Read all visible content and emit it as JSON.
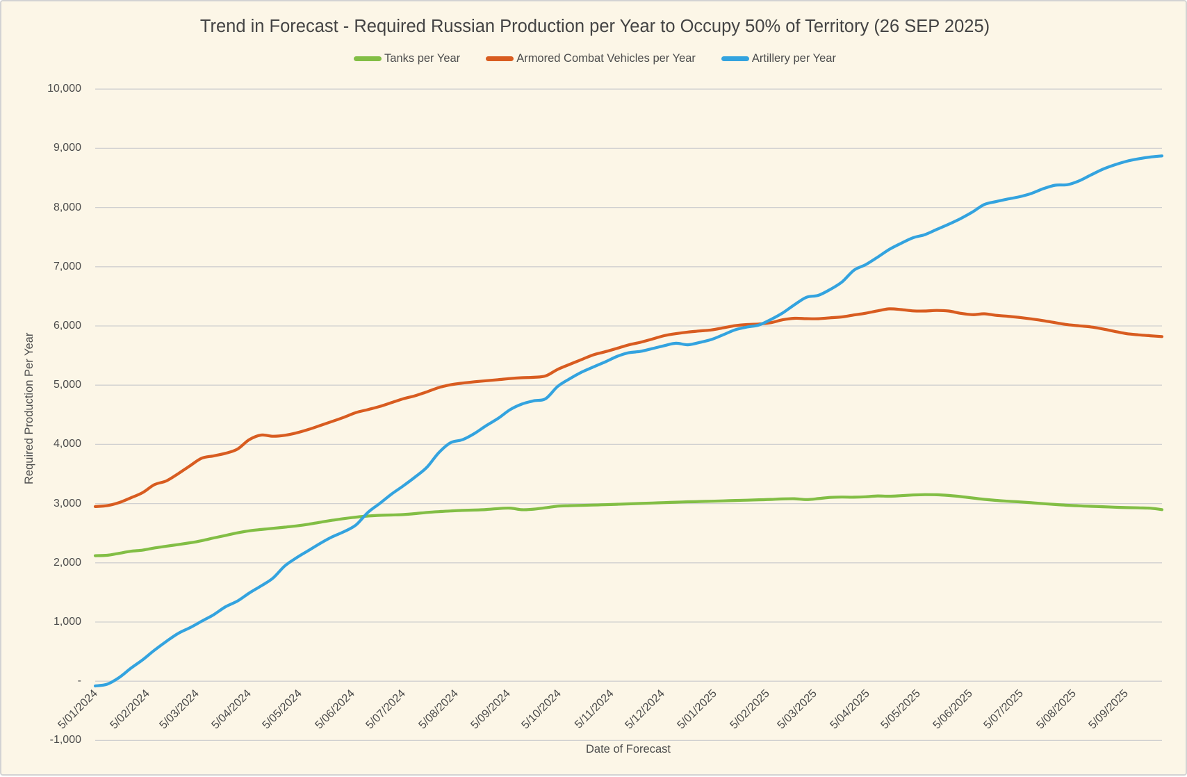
{
  "frame": {
    "background": "#FCF6E7",
    "border_color": "#D3D3D3"
  },
  "title": {
    "text": "Trend in Forecast - Required Russian Production per Year to Occupy 50% of Territory (26 SEP 2025)",
    "color": "#444444"
  },
  "legend": {
    "items": [
      {
        "label": "Tanks per Year",
        "color": "#82BE45"
      },
      {
        "label": "Armored Combat Vehicles per Year",
        "color": "#D85C20"
      },
      {
        "label": "Artillery per Year",
        "color": "#33A3DF"
      }
    ]
  },
  "axes": {
    "y": {
      "title": "Required Production Per Year",
      "tick_labels": [
        "-1,000",
        "-",
        "1,000",
        "2,000",
        "3,000",
        "4,000",
        "5,000",
        "6,000",
        "7,000",
        "8,000",
        "9,000",
        "10,000"
      ],
      "tick_values": [
        -1000,
        0,
        1000,
        2000,
        3000,
        4000,
        5000,
        6000,
        7000,
        8000,
        9000,
        10000
      ],
      "min": -1000,
      "max": 10000
    },
    "x": {
      "title": "Date of Forecast",
      "tick_labels": [
        "5/01/2024",
        "5/02/2024",
        "5/03/2024",
        "5/04/2024",
        "5/05/2024",
        "5/06/2024",
        "5/07/2024",
        "5/08/2024",
        "5/09/2024",
        "5/10/2024",
        "5/11/2024",
        "5/12/2024",
        "5/01/2025",
        "5/02/2025",
        "5/03/2025",
        "5/04/2025",
        "5/05/2025",
        "5/06/2025",
        "5/07/2025",
        "5/08/2025",
        "5/09/2025"
      ]
    }
  },
  "grid": {
    "color": "#D0D0D0"
  },
  "text_color": "#4C4C4C",
  "chart_data": {
    "type": "line",
    "title": "Trend in Forecast - Required Russian Production per Year to Occupy 50% of Territory (26 SEP 2025)",
    "xlabel": "Date of Forecast",
    "ylabel": "Required Production Per Year",
    "ylim": [
      -1000,
      10000
    ],
    "grid": true,
    "legend_position": "top",
    "x": [
      "2024-01-05",
      "2024-01-12",
      "2024-01-19",
      "2024-01-26",
      "2024-02-02",
      "2024-02-09",
      "2024-02-16",
      "2024-02-23",
      "2024-03-01",
      "2024-03-08",
      "2024-03-15",
      "2024-03-22",
      "2024-03-29",
      "2024-04-05",
      "2024-04-12",
      "2024-04-19",
      "2024-04-26",
      "2024-05-03",
      "2024-05-10",
      "2024-05-17",
      "2024-05-24",
      "2024-05-31",
      "2024-06-07",
      "2024-06-14",
      "2024-06-21",
      "2024-06-28",
      "2024-07-05",
      "2024-07-12",
      "2024-07-19",
      "2024-07-26",
      "2024-08-02",
      "2024-08-09",
      "2024-08-16",
      "2024-08-23",
      "2024-08-30",
      "2024-09-06",
      "2024-09-13",
      "2024-09-20",
      "2024-09-27",
      "2024-10-04",
      "2024-10-11",
      "2024-10-18",
      "2024-10-25",
      "2024-11-01",
      "2024-11-08",
      "2024-11-15",
      "2024-11-22",
      "2024-11-29",
      "2024-12-06",
      "2024-12-13",
      "2024-12-20",
      "2024-12-27",
      "2025-01-03",
      "2025-01-10",
      "2025-01-17",
      "2025-01-24",
      "2025-01-31",
      "2025-02-07",
      "2025-02-14",
      "2025-02-21",
      "2025-02-28",
      "2025-03-07",
      "2025-03-14",
      "2025-03-21",
      "2025-03-28",
      "2025-04-04",
      "2025-04-11",
      "2025-04-18",
      "2025-04-25",
      "2025-05-02",
      "2025-05-09",
      "2025-05-16",
      "2025-05-23",
      "2025-05-30",
      "2025-06-06",
      "2025-06-13",
      "2025-06-20",
      "2025-06-27",
      "2025-07-04",
      "2025-07-11",
      "2025-07-18",
      "2025-07-25",
      "2025-08-01",
      "2025-08-08",
      "2025-08-15",
      "2025-08-22",
      "2025-08-29",
      "2025-09-05",
      "2025-09-12",
      "2025-09-19",
      "2025-09-26"
    ],
    "series": [
      {
        "name": "Tanks per Year",
        "color": "#82BE45",
        "values": [
          2120,
          2127,
          2160,
          2195,
          2214,
          2251,
          2280,
          2308,
          2338,
          2374,
          2420,
          2463,
          2506,
          2540,
          2562,
          2582,
          2602,
          2623,
          2651,
          2686,
          2718,
          2747,
          2771,
          2790,
          2802,
          2808,
          2815,
          2831,
          2851,
          2864,
          2876,
          2885,
          2891,
          2900,
          2916,
          2924,
          2897,
          2906,
          2929,
          2956,
          2965,
          2970,
          2975,
          2981,
          2988,
          2995,
          3002,
          3009,
          3016,
          3023,
          3030,
          3035,
          3040,
          3046,
          3053,
          3058,
          3064,
          3070,
          3079,
          3082,
          3068,
          3084,
          3104,
          3110,
          3108,
          3115,
          3129,
          3124,
          3134,
          3145,
          3151,
          3149,
          3137,
          3119,
          3095,
          3072,
          3054,
          3040,
          3028,
          3014,
          2999,
          2985,
          2972,
          2962,
          2954,
          2947,
          2939,
          2932,
          2928,
          2922,
          2898
        ]
      },
      {
        "name": "Armored Combat Vehicles per Year",
        "color": "#D85C20",
        "values": [
          2950,
          2965,
          3015,
          3097,
          3185,
          3320,
          3383,
          3505,
          3639,
          3768,
          3806,
          3850,
          3920,
          4080,
          4157,
          4137,
          4154,
          4195,
          4252,
          4320,
          4388,
          4459,
          4537,
          4587,
          4640,
          4705,
          4770,
          4822,
          4889,
          4960,
          5007,
          5035,
          5057,
          5075,
          5093,
          5112,
          5126,
          5133,
          5156,
          5265,
          5349,
          5429,
          5511,
          5563,
          5620,
          5680,
          5724,
          5778,
          5836,
          5870,
          5897,
          5915,
          5933,
          5968,
          6005,
          6024,
          6033,
          6055,
          6104,
          6129,
          6123,
          6122,
          6137,
          6153,
          6185,
          6215,
          6255,
          6289,
          6276,
          6255,
          6252,
          6262,
          6252,
          6214,
          6191,
          6205,
          6180,
          6163,
          6143,
          6118,
          6089,
          6055,
          6022,
          6002,
          5984,
          5950,
          5909,
          5870,
          5850,
          5835,
          5820
        ]
      },
      {
        "name": "Artillery per Year",
        "color": "#33A3DF",
        "values": [
          -80,
          -50,
          60,
          218,
          362,
          525,
          672,
          808,
          905,
          1015,
          1125,
          1258,
          1355,
          1490,
          1610,
          1742,
          1948,
          2087,
          2208,
          2330,
          2439,
          2527,
          2639,
          2850,
          3001,
          3161,
          3300,
          3451,
          3617,
          3863,
          4030,
          4080,
          4184,
          4318,
          4440,
          4586,
          4681,
          4736,
          4771,
          4976,
          5105,
          5217,
          5305,
          5391,
          5483,
          5547,
          5570,
          5617,
          5667,
          5708,
          5682,
          5722,
          5772,
          5852,
          5936,
          5982,
          6016,
          6109,
          6220,
          6359,
          6483,
          6517,
          6615,
          6742,
          6940,
          7035,
          7161,
          7293,
          7397,
          7490,
          7542,
          7630,
          7717,
          7812,
          7923,
          8050,
          8100,
          8144,
          8183,
          8240,
          8319,
          8377,
          8385,
          8449,
          8549,
          8645,
          8720,
          8780,
          8822,
          8852,
          8872
        ]
      }
    ]
  }
}
